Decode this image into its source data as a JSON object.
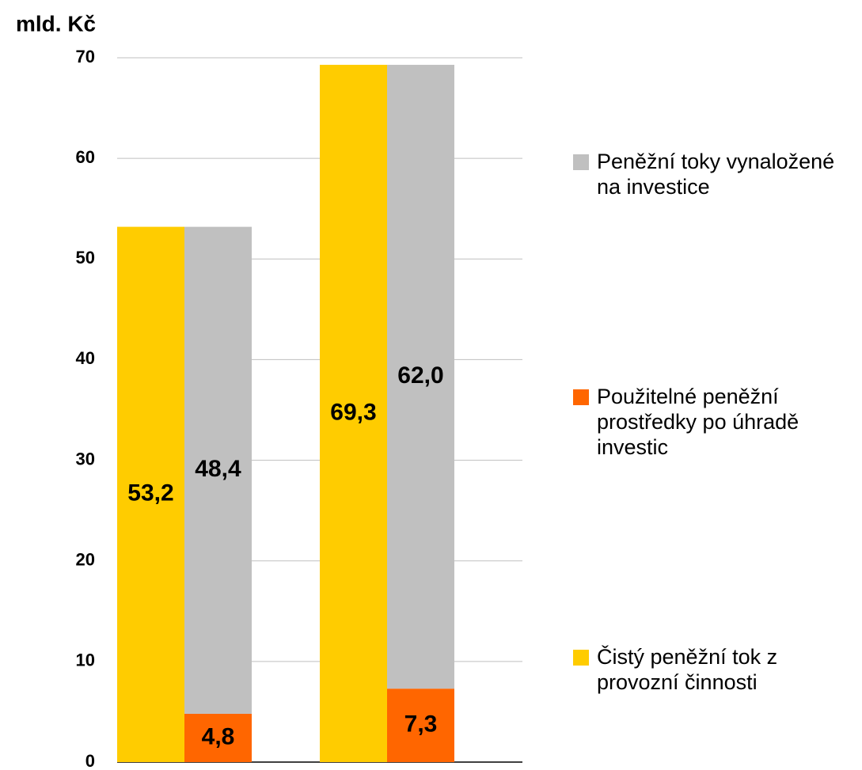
{
  "chart_data": {
    "type": "bar",
    "y_label": "mld. Kč",
    "categories": [
      null,
      null
    ],
    "series": [
      {
        "name": "Čistý peněžní tok z provozní činnosti",
        "color": "#ffcc00",
        "stack": "1",
        "values": [
          53.2,
          69.3
        ],
        "value_labels": [
          "53,2",
          "69,3"
        ]
      },
      {
        "name": "Použitelné peněžní prostředky po úhradě investic",
        "color": "#ff6600",
        "stack": "2",
        "values": [
          4.8,
          7.3
        ],
        "value_labels": [
          "4,8",
          "7,3"
        ]
      },
      {
        "name": "Peněžní toky vynaložené na investice",
        "color": "#c0c0c0",
        "stack": "2",
        "values": [
          48.4,
          62.0
        ],
        "value_labels": [
          "48,4",
          "62,0"
        ]
      }
    ],
    "ylim": [
      0,
      70
    ],
    "yticks": [
      0,
      10,
      20,
      30,
      40,
      50,
      60,
      70
    ],
    "grid": true
  }
}
